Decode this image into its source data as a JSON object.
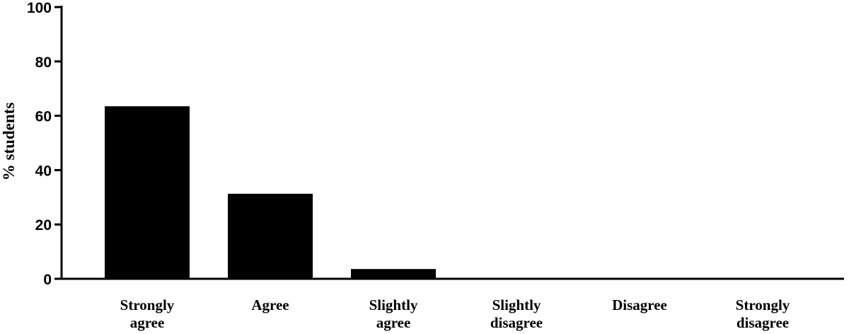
{
  "chart_data": {
    "type": "bar",
    "title": "",
    "xlabel": "",
    "ylabel": "% students",
    "ylim": [
      0,
      100
    ],
    "yticks": [
      0,
      20,
      40,
      60,
      80,
      100
    ],
    "categories": [
      [
        "Strongly",
        "agree"
      ],
      [
        "Agree"
      ],
      [
        "Slightly",
        "agree"
      ],
      [
        "Slightly",
        "disagree"
      ],
      [
        "Disagree"
      ],
      [
        "Strongly",
        "disagree"
      ]
    ],
    "values": [
      63.5,
      31.3,
      3.6,
      0,
      0,
      0
    ],
    "bar_color": "#000000",
    "grid": false,
    "legend": "none"
  }
}
